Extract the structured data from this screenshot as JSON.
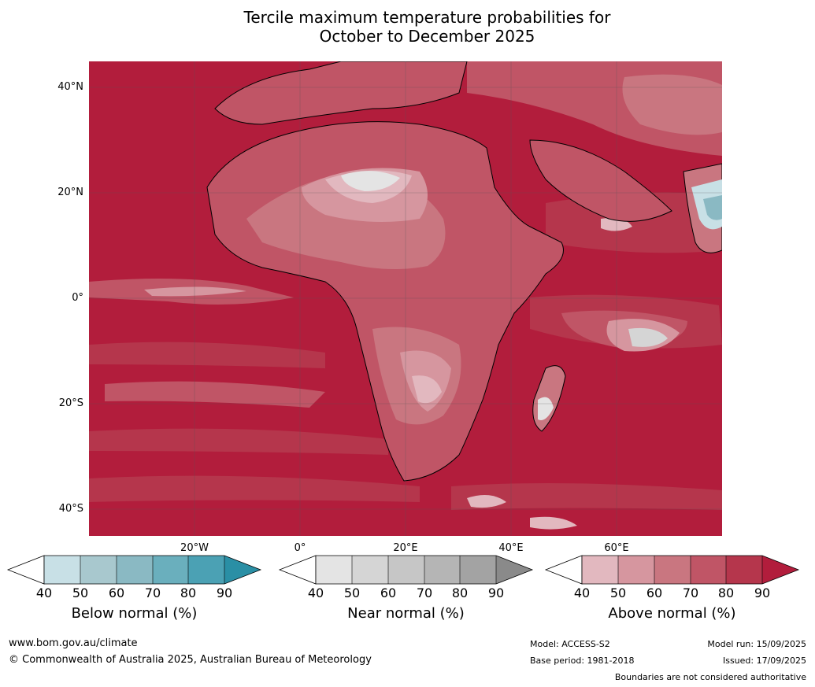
{
  "title_line1": "Tercile maximum temperature probabilities for",
  "title_line2": "October to December 2025",
  "map": {
    "latitude_labels": [
      "40°N",
      "20°N",
      "0°",
      "20°S",
      "40°S"
    ],
    "longitude_labels": [
      "20°W",
      "0°",
      "20°E",
      "40°E",
      "60°E"
    ]
  },
  "legend": {
    "below": {
      "label": "Below normal (%)",
      "ticks": [
        "40",
        "50",
        "60",
        "70",
        "80",
        "90"
      ],
      "colors": [
        "#c8e0e6",
        "#a8c8ce",
        "#8ab9c3",
        "#6aafbd",
        "#4ba1b4",
        "#2a8fa5"
      ]
    },
    "near": {
      "label": "Near normal (%)",
      "ticks": [
        "40",
        "50",
        "60",
        "70",
        "80",
        "90"
      ],
      "colors": [
        "#e4e4e4",
        "#d5d5d5",
        "#c6c6c6",
        "#b5b5b5",
        "#a3a3a3",
        "#8a8a8a"
      ]
    },
    "above": {
      "label": "Above normal (%)",
      "ticks": [
        "40",
        "50",
        "60",
        "70",
        "80",
        "90"
      ],
      "colors": [
        "#e2b8bf",
        "#d6969f",
        "#c97680",
        "#c05566",
        "#b5364c",
        "#b21d3c"
      ]
    }
  },
  "footer": {
    "website": "www.bom.gov.au/climate",
    "copyright": "© Commonwealth of Australia 2025, Australian Bureau of Meteorology",
    "model": "Model: ACCESS-S2",
    "base_period": "Base period: 1981-2018",
    "model_run": "Model run: 15/09/2025",
    "issued": "Issued: 17/09/2025",
    "disclaimer": "Boundaries are not considered authoritative"
  }
}
